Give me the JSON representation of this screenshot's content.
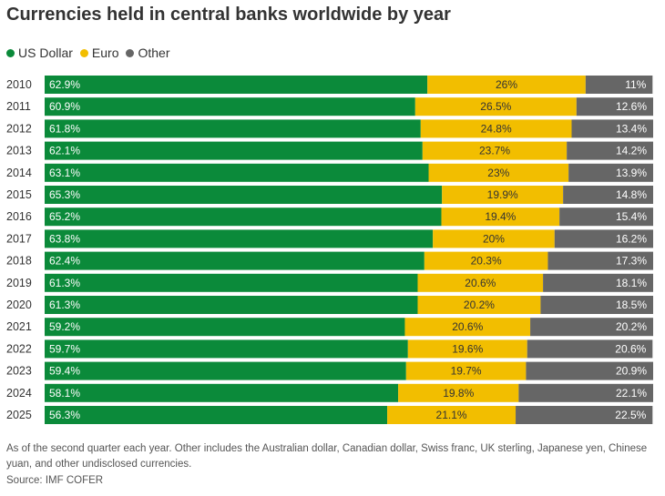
{
  "chart_data": {
    "type": "bar",
    "orientation": "horizontal",
    "stacked": true,
    "title": "Currencies held in central banks worldwide by year",
    "categories": [
      "2010",
      "2011",
      "2012",
      "2013",
      "2014",
      "2015",
      "2016",
      "2017",
      "2018",
      "2019",
      "2020",
      "2021",
      "2022",
      "2023",
      "2024",
      "2025"
    ],
    "series": [
      {
        "name": "US Dollar",
        "color": "#0b8a3a",
        "values": [
          62.9,
          60.9,
          61.8,
          62.1,
          63.1,
          65.3,
          65.2,
          63.8,
          62.4,
          61.3,
          61.3,
          59.2,
          59.7,
          59.4,
          58.1,
          56.3
        ],
        "labels": [
          "62.9%",
          "60.9%",
          "61.8%",
          "62.1%",
          "63.1%",
          "65.3%",
          "65.2%",
          "63.8%",
          "62.4%",
          "61.3%",
          "61.3%",
          "59.2%",
          "59.7%",
          "59.4%",
          "58.1%",
          "56.3%"
        ]
      },
      {
        "name": "Euro",
        "color": "#f2be00",
        "values": [
          26,
          26.5,
          24.8,
          23.7,
          23,
          19.9,
          19.4,
          20,
          20.3,
          20.6,
          20.2,
          20.6,
          19.6,
          19.7,
          19.8,
          21.1
        ],
        "labels": [
          "26%",
          "26.5%",
          "24.8%",
          "23.7%",
          "23%",
          "19.9%",
          "19.4%",
          "20%",
          "20.3%",
          "20.6%",
          "20.2%",
          "20.6%",
          "19.6%",
          "19.7%",
          "19.8%",
          "21.1%"
        ]
      },
      {
        "name": "Other",
        "color": "#666666",
        "values": [
          11,
          12.6,
          13.4,
          14.2,
          13.9,
          14.8,
          15.4,
          16.2,
          17.3,
          18.1,
          18.5,
          20.2,
          20.6,
          20.9,
          22.1,
          22.5
        ],
        "labels": [
          "11%",
          "12.6%",
          "13.4%",
          "14.2%",
          "13.9%",
          "14.8%",
          "15.4%",
          "16.2%",
          "17.3%",
          "18.1%",
          "18.5%",
          "20.2%",
          "20.6%",
          "20.9%",
          "22.1%",
          "22.5%"
        ]
      }
    ],
    "xlim": [
      0,
      100
    ],
    "legend_position": "top-left",
    "grid": false
  },
  "legend": {
    "usd": "US Dollar",
    "euro": "Euro",
    "other": "Other"
  },
  "footer": {
    "note": "As of the second quarter each year. Other includes the Australian dollar, Canadian dollar, Swiss franc, UK sterling, Japanese yen, Chinese yuan, and other undisclosed currencies.",
    "source": "Source: IMF COFER"
  }
}
